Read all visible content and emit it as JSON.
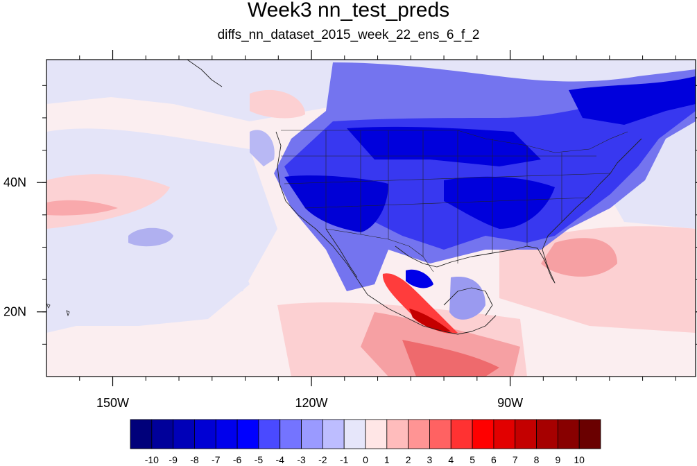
{
  "title": "Week3 nn_test_preds",
  "subtitle": "diffs_nn_dataset_2015_week_22_ens_6_f_2",
  "map": {
    "lon_range": [
      -160,
      -62
    ],
    "lat_range": [
      10,
      59
    ],
    "lon_ticks": [
      {
        "value": -150,
        "label": "150W"
      },
      {
        "value": -120,
        "label": "120W"
      },
      {
        "value": -90,
        "label": "90W"
      }
    ],
    "lat_ticks": [
      {
        "value": 20,
        "label": "20N"
      },
      {
        "value": 40,
        "label": "40N"
      }
    ]
  },
  "colorbar": {
    "labels": [
      "-10",
      "-9",
      "-8",
      "-7",
      "-6",
      "-5",
      "-4",
      "-3",
      "-2",
      "-1",
      "0",
      "1",
      "2",
      "3",
      "4",
      "5",
      "6",
      "7",
      "8",
      "9",
      "10"
    ],
    "colors": [
      "#00007a",
      "#00009a",
      "#0000b8",
      "#0000d4",
      "#0000ec",
      "#0000ff",
      "#4a4aff",
      "#7474ff",
      "#9a9aff",
      "#bdbdff",
      "#e6e6fa",
      "#ffe6e6",
      "#ffbcbc",
      "#ff9494",
      "#ff6262",
      "#ff3232",
      "#ff0000",
      "#e20000",
      "#c40000",
      "#a60000",
      "#880000",
      "#6a0000"
    ]
  }
}
